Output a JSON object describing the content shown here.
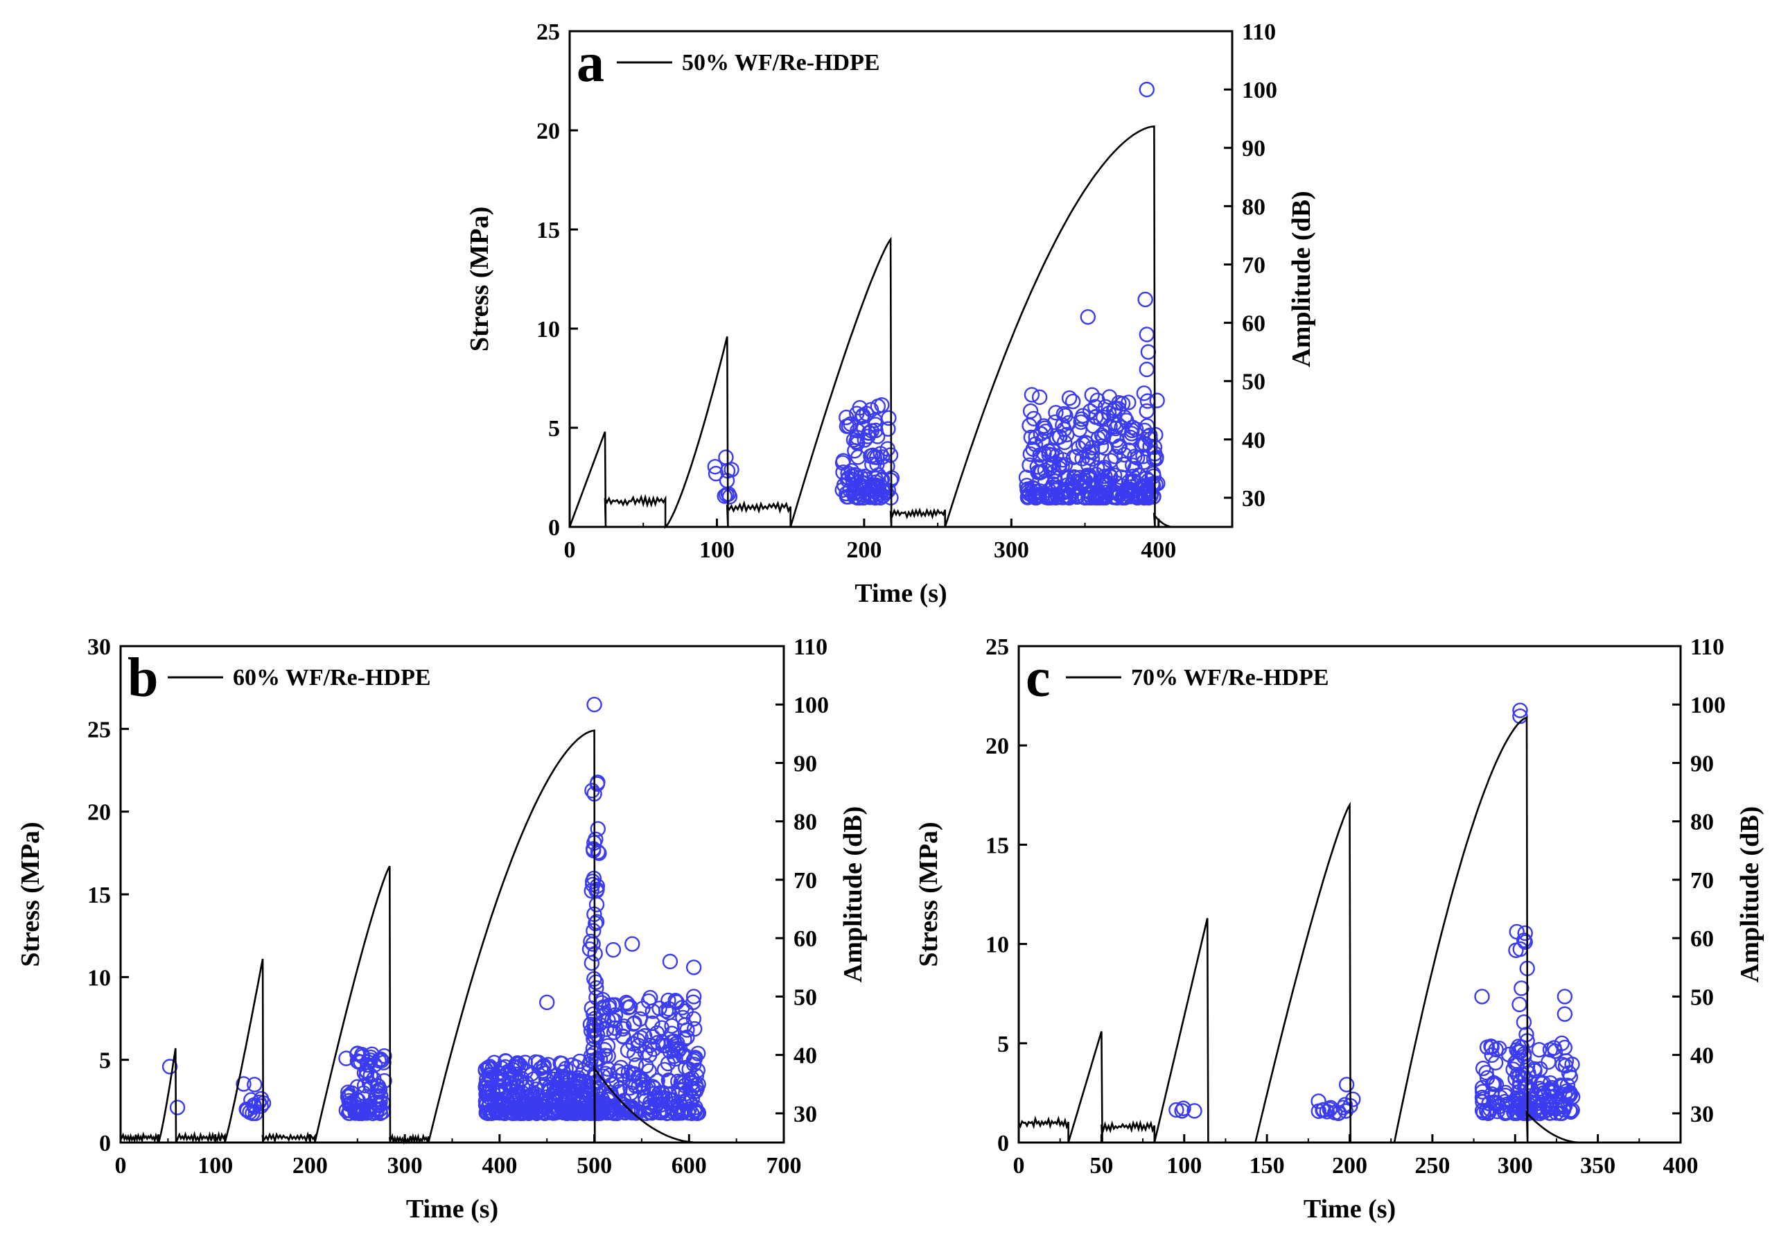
{
  "chart_data": [
    {
      "type": "line+scatter",
      "panel": "a",
      "legend": "50% WF/Re-HDPE",
      "xlabel": "Time (s)",
      "ylabel": "Stress (MPa)",
      "y2label": "Amplitude (dB)",
      "xlim": [
        0,
        450
      ],
      "xticks": [
        0,
        100,
        200,
        300,
        400
      ],
      "ylim": [
        0,
        25
      ],
      "yticks": [
        0,
        5,
        10,
        15,
        20,
        25
      ],
      "y2lim": [
        25,
        110
      ],
      "y2ticks": [
        30,
        40,
        50,
        60,
        70,
        80,
        90,
        100,
        110
      ],
      "cycles": [
        {
          "t0": 0,
          "t1": 24,
          "peak": 4.8,
          "shape": 1.0
        },
        {
          "t0": 65,
          "t1": 107,
          "peak": 9.6,
          "shape": 1.3
        },
        {
          "t0": 150,
          "t1": 218,
          "peak": 14.5,
          "shape": 0.85
        },
        {
          "t0": 255,
          "t1": 397,
          "peak": 20.2,
          "shape": 0.6
        }
      ],
      "plateaus": [
        {
          "t0": 24,
          "t1": 65,
          "base": 1.3
        },
        {
          "t0": 107,
          "t1": 150,
          "base": 1.0
        },
        {
          "t0": 218,
          "t1": 255,
          "base": 0.7
        }
      ],
      "tail": {
        "t0": 397,
        "t1": 410,
        "v0": 0.6
      },
      "ae_groups": [
        {
          "t0": 96,
          "t1": 112,
          "n": 10,
          "ampMax": 37
        },
        {
          "t0": 185,
          "t1": 219,
          "n": 110,
          "ampMax": 46
        },
        {
          "t0": 310,
          "t1": 400,
          "n": 320,
          "ampMax": 48
        }
      ],
      "ae_peaks": [
        {
          "t": 392,
          "amp": 100
        },
        {
          "t": 352,
          "amp": 61
        },
        {
          "t": 391,
          "amp": 64
        },
        {
          "t": 392,
          "amp": 58
        },
        {
          "t": 393,
          "amp": 55
        },
        {
          "t": 392,
          "amp": 52
        }
      ]
    },
    {
      "type": "line+scatter",
      "panel": "b",
      "legend": "60% WF/Re-HDPE",
      "xlabel": "Time (s)",
      "ylabel": "Stress (MPa)",
      "y2label": "Amplitude (dB)",
      "xlim": [
        0,
        700
      ],
      "xticks": [
        0,
        100,
        200,
        300,
        400,
        500,
        600,
        700
      ],
      "ylim": [
        0,
        30
      ],
      "yticks": [
        0,
        5,
        10,
        15,
        20,
        25,
        30
      ],
      "y2lim": [
        25,
        110
      ],
      "y2ticks": [
        30,
        40,
        50,
        60,
        70,
        80,
        90,
        100,
        110
      ],
      "cycles": [
        {
          "t0": 40,
          "t1": 58,
          "peak": 5.7,
          "shape": 1.2
        },
        {
          "t0": 110,
          "t1": 150,
          "peak": 11.1,
          "shape": 1.1
        },
        {
          "t0": 205,
          "t1": 284,
          "peak": 16.7,
          "shape": 0.85
        },
        {
          "t0": 325,
          "t1": 500,
          "peak": 24.9,
          "shape": 0.6
        }
      ],
      "plateaus": [
        {
          "t0": 0,
          "t1": 40,
          "base": 0.3
        },
        {
          "t0": 62,
          "t1": 110,
          "base": 0.3
        },
        {
          "t0": 150,
          "t1": 205,
          "base": 0.3
        },
        {
          "t0": 284,
          "t1": 325,
          "base": 0.2
        }
      ],
      "tail": {
        "t0": 500,
        "t1": 610,
        "v0": 4.5
      },
      "ae_groups": [
        {
          "t0": 128,
          "t1": 152,
          "n": 14,
          "ampMax": 36
        },
        {
          "t0": 238,
          "t1": 280,
          "n": 90,
          "ampMax": 41
        },
        {
          "t0": 385,
          "t1": 495,
          "n": 320,
          "ampMax": 39
        },
        {
          "t0": 495,
          "t1": 505,
          "n": 90,
          "ampMax": 88
        },
        {
          "t0": 505,
          "t1": 610,
          "n": 260,
          "ampMax": 50
        }
      ],
      "ae_peaks": [
        {
          "t": 500,
          "amp": 100
        },
        {
          "t": 52,
          "amp": 38
        },
        {
          "t": 60,
          "amp": 31
        },
        {
          "t": 450,
          "amp": 49
        },
        {
          "t": 540,
          "amp": 59
        },
        {
          "t": 580,
          "amp": 56
        },
        {
          "t": 605,
          "amp": 55
        },
        {
          "t": 605,
          "amp": 50
        },
        {
          "t": 520,
          "amp": 58
        }
      ]
    },
    {
      "type": "line+scatter",
      "panel": "c",
      "legend": "70% WF/Re-HDPE",
      "xlabel": "Time (s)",
      "ylabel": "Stress (MPa)",
      "y2label": "Amplitude (dB)",
      "xlim": [
        0,
        400
      ],
      "xticks": [
        0,
        50,
        100,
        150,
        200,
        250,
        300,
        350,
        400
      ],
      "ylim": [
        0,
        25
      ],
      "yticks": [
        0,
        5,
        10,
        15,
        20,
        25
      ],
      "y2lim": [
        25,
        110
      ],
      "y2ticks": [
        30,
        40,
        50,
        60,
        70,
        80,
        90,
        100,
        110
      ],
      "cycles": [
        {
          "t0": 30,
          "t1": 50,
          "peak": 5.6,
          "shape": 1.0
        },
        {
          "t0": 82,
          "t1": 114,
          "peak": 11.3,
          "shape": 1.0
        },
        {
          "t0": 143,
          "t1": 200,
          "peak": 17.0,
          "shape": 0.85
        },
        {
          "t0": 227,
          "t1": 307,
          "peak": 21.4,
          "shape": 0.65
        }
      ],
      "plateaus": [
        {
          "t0": 0,
          "t1": 30,
          "base": 1.0
        },
        {
          "t0": 50,
          "t1": 82,
          "base": 0.8
        },
        {
          "t0": 114,
          "t1": 143,
          "base": 0.0
        },
        {
          "t0": 200,
          "t1": 227,
          "base": 0.0
        }
      ],
      "tail": {
        "t0": 307,
        "t1": 340,
        "v0": 1.5
      },
      "ae_groups": [
        {
          "t0": 94,
          "t1": 110,
          "n": 4,
          "ampMax": 31
        },
        {
          "t0": 180,
          "t1": 203,
          "n": 16,
          "ampMax": 35
        },
        {
          "t0": 280,
          "t1": 335,
          "n": 150,
          "ampMax": 42
        },
        {
          "t0": 300,
          "t1": 308,
          "n": 40,
          "ampMax": 65
        }
      ],
      "ae_peaks": [
        {
          "t": 303,
          "amp": 99
        },
        {
          "t": 303,
          "amp": 98
        },
        {
          "t": 280,
          "amp": 50
        },
        {
          "t": 330,
          "amp": 50
        },
        {
          "t": 330,
          "amp": 47
        }
      ]
    }
  ]
}
